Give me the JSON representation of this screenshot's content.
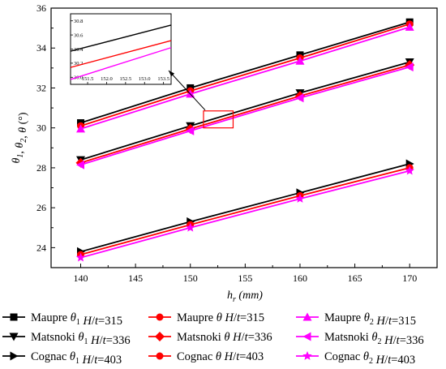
{
  "chart_data": {
    "type": "line",
    "xlabel": "h_r (mm)",
    "ylabel": "θ1, θ2, θ (°)",
    "x_axis": {
      "var": "h",
      "sub": "r",
      "unit": "(mm)"
    },
    "y_axis": {
      "parts": [
        [
          "θ",
          "1"
        ],
        [
          "θ",
          "2"
        ],
        [
          "θ",
          ""
        ]
      ],
      "unit": "(°)"
    },
    "xlim": [
      137.3,
      172.5
    ],
    "ylim": [
      23,
      36
    ],
    "x_ticks": [
      "140",
      "145",
      "150",
      "155",
      "160",
      "165",
      "170"
    ],
    "y_ticks": [
      "24",
      "26",
      "28",
      "30",
      "32",
      "34",
      "36"
    ],
    "x": [
      140,
      150,
      160,
      170
    ],
    "series": [
      {
        "name": "Maupre θ1 H/t=315",
        "label": {
          "pre": "Maupre ",
          "sym": "θ",
          "sub": "1",
          "post": " H/t=315"
        },
        "color": "#000000",
        "marker": "square",
        "values": [
          30.25,
          32.0,
          33.65,
          35.3
        ]
      },
      {
        "name": "Maupre θ H/t=315",
        "label": {
          "pre": "Maupre ",
          "sym": "θ",
          "sub": "",
          "post": " H/t=315"
        },
        "color": "#ff0000",
        "marker": "circle",
        "values": [
          30.1,
          31.85,
          33.5,
          35.2
        ]
      },
      {
        "name": "Maupre θ2 H/t=315",
        "label": {
          "pre": "Maupre ",
          "sym": "θ",
          "sub": "2",
          "post": " H/t=315"
        },
        "color": "#ff00ff",
        "marker": "triangle-up",
        "values": [
          29.95,
          31.7,
          33.35,
          35.05
        ]
      },
      {
        "name": "Matsnoki θ1 H/t=336",
        "label": {
          "pre": "Matsnoki ",
          "sym": "θ",
          "sub": "1",
          "post": " H/t=336"
        },
        "color": "#000000",
        "marker": "triangle-down",
        "values": [
          28.4,
          30.1,
          31.75,
          33.3
        ]
      },
      {
        "name": "Matsnoki θ H/t=336",
        "label": {
          "pre": "Matsnoki ",
          "sym": "θ",
          "sub": "",
          "post": " H/t=336"
        },
        "color": "#ff0000",
        "marker": "diamond",
        "values": [
          28.25,
          29.95,
          31.6,
          33.15
        ]
      },
      {
        "name": "Matsnoki θ2 H/t=336",
        "label": {
          "pre": "Matsnoki ",
          "sym": "θ",
          "sub": "2",
          "post": " H/t=336"
        },
        "color": "#ff00ff",
        "marker": "triangle-left",
        "values": [
          28.15,
          29.85,
          31.5,
          33.05
        ]
      },
      {
        "name": "Cognac θ1 H/t=403",
        "label": {
          "pre": "Cognac ",
          "sym": "θ",
          "sub": "1",
          "post": " H/t=403"
        },
        "color": "#000000",
        "marker": "triangle-right",
        "values": [
          23.8,
          25.3,
          26.75,
          28.2
        ]
      },
      {
        "name": "Cognac θ H/t=403",
        "label": {
          "pre": "Cognac ",
          "sym": "θ",
          "sub": "",
          "post": " H/t=403"
        },
        "color": "#ff0000",
        "marker": "circle",
        "values": [
          23.65,
          25.15,
          26.6,
          28.0
        ]
      },
      {
        "name": "Cognac θ2 H/t=403",
        "label": {
          "pre": "Cognac ",
          "sym": "θ",
          "sub": "2",
          "post": " H/t=403"
        },
        "color": "#ff00ff",
        "marker": "star",
        "values": [
          23.5,
          25.0,
          26.45,
          27.85
        ]
      }
    ],
    "inset": {
      "xlim": [
        151.05,
        153.7
      ],
      "ylim": [
        29.9,
        30.9
      ],
      "x_ticks": [
        "151.5",
        "152.0",
        "152.5",
        "153.0",
        "153.5"
      ],
      "y_ticks": [
        "30.0",
        "30.2",
        "30.4",
        "30.6",
        "30.8"
      ],
      "lines": [
        {
          "color": "#000000",
          "y": [
            30.37,
            30.74
          ]
        },
        {
          "color": "#ff0000",
          "y": [
            30.14,
            30.52
          ]
        },
        {
          "color": "#ff00ff",
          "y": [
            29.97,
            30.42
          ]
        }
      ]
    },
    "zoom_box": {
      "x": [
        151.2,
        153.9
      ],
      "y": [
        30.0,
        30.85
      ]
    },
    "legend": {
      "position": "bottom",
      "columns": 3
    },
    "grid": false
  }
}
